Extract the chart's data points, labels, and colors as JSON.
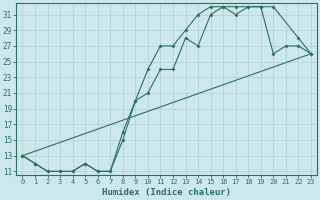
{
  "xlabel": "Humidex (Indice chaleur)",
  "bg_color": "#cce8ec",
  "grid_color": "#b0cfd4",
  "line_color": "#2d7060",
  "xlim": [
    -0.5,
    23.5
  ],
  "ylim": [
    10.5,
    32.5
  ],
  "xticks": [
    0,
    1,
    2,
    3,
    4,
    5,
    6,
    7,
    8,
    9,
    10,
    11,
    12,
    13,
    14,
    15,
    16,
    17,
    18,
    19,
    20,
    21,
    22,
    23
  ],
  "yticks": [
    11,
    13,
    15,
    17,
    19,
    21,
    23,
    25,
    27,
    29,
    31
  ],
  "line1_x": [
    0,
    1,
    2,
    3,
    4,
    5,
    6,
    7,
    8,
    9,
    10,
    11,
    12,
    13,
    14,
    15,
    16,
    17,
    18,
    19,
    20,
    21,
    22,
    23
  ],
  "line1_y": [
    13,
    12,
    11,
    11,
    11,
    12,
    11,
    11,
    15,
    20,
    24,
    27,
    27,
    29,
    31,
    32,
    32,
    31,
    32,
    32,
    26,
    27,
    27,
    26
  ],
  "line2_x": [
    0,
    1,
    2,
    3,
    4,
    5,
    6,
    7,
    8,
    9,
    10,
    11,
    12,
    13,
    14,
    15,
    16,
    17,
    18,
    19,
    20,
    22,
    23
  ],
  "line2_y": [
    13,
    12,
    11,
    11,
    11,
    12,
    11,
    11,
    16,
    20,
    21,
    24,
    24,
    28,
    27,
    31,
    32,
    32,
    32,
    32,
    32,
    28,
    26
  ],
  "line3_x": [
    0,
    23
  ],
  "line3_y": [
    13,
    26
  ]
}
